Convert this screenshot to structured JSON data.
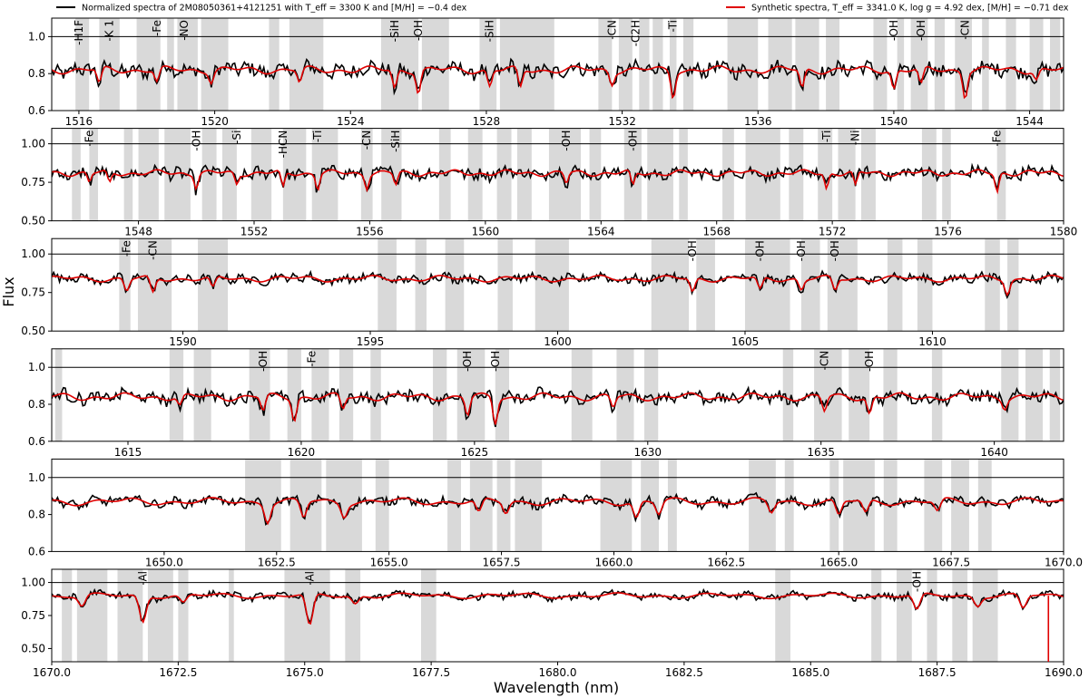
{
  "chart_data": {
    "type": "line",
    "xlabel": "Wavelength (nm)",
    "ylabel": "Flux",
    "legend": {
      "placement": "top",
      "entries": [
        {
          "label": "Normalized spectra of 2M08050361+4121251 with T_eff = 3300 K and [M/H] = −0.4 dex",
          "color": "#000000"
        },
        {
          "label": "Synthetic spectra, T_eff = 3341.0 K, log g = 4.92 dex, [M/H] = −0.71 dex",
          "color": "#e00000"
        }
      ]
    },
    "reference_line": 1.0,
    "highlight_color": "#d9d9d9",
    "panels": [
      {
        "xlim": [
          1515.2,
          1545.0
        ],
        "ylim": [
          0.6,
          1.1
        ],
        "xticks": [
          1516,
          1520,
          1524,
          1528,
          1532,
          1536,
          1540,
          1544
        ],
        "yticks": [
          0.6,
          0.8,
          1.0
        ],
        "ytick_decimals": 1,
        "xtick_decimals": 0,
        "baseline": 0.82,
        "noise": 0.035,
        "highlight_bands": [
          [
            1515.9,
            1516.3
          ],
          [
            1516.6,
            1517.2
          ],
          [
            1517.7,
            1518.4
          ],
          [
            1518.6,
            1518.8
          ],
          [
            1518.9,
            1519.5
          ],
          [
            1519.6,
            1520.4
          ],
          [
            1521.6,
            1521.9
          ],
          [
            1522.2,
            1523.2
          ],
          [
            1524.9,
            1526.0
          ],
          [
            1526.1,
            1526.9
          ],
          [
            1527.8,
            1528.3
          ],
          [
            1528.4,
            1530.0
          ],
          [
            1531.3,
            1531.7
          ],
          [
            1531.9,
            1532.3
          ],
          [
            1532.5,
            1532.8
          ],
          [
            1532.9,
            1533.2
          ],
          [
            1533.4,
            1533.6
          ],
          [
            1533.8,
            1534.1
          ],
          [
            1535.1,
            1536.0
          ],
          [
            1536.3,
            1537.0
          ],
          [
            1537.1,
            1537.8
          ],
          [
            1538.0,
            1538.4
          ],
          [
            1539.4,
            1539.8
          ],
          [
            1540.1,
            1540.3
          ],
          [
            1540.5,
            1541.0
          ],
          [
            1541.2,
            1541.5
          ],
          [
            1541.8,
            1542.3
          ],
          [
            1542.6,
            1542.8
          ],
          [
            1543.3,
            1543.6
          ],
          [
            1544.0,
            1544.4
          ],
          [
            1544.6,
            1544.9
          ]
        ],
        "features": [
          {
            "label": "-H1F",
            "x": 1516.0
          },
          {
            "label": "-K 1",
            "x": 1516.9
          },
          {
            "label": "-Fe",
            "x": 1518.3
          },
          {
            "label": "-NO",
            "x": 1519.1
          },
          {
            "label": "-SiH",
            "x": 1525.3
          },
          {
            "label": "-OH",
            "x": 1526.0
          },
          {
            "label": "-SiH",
            "x": 1528.1
          },
          {
            "label": "-CN",
            "x": 1531.7
          },
          {
            "label": "-C2H",
            "x": 1532.4
          },
          {
            "label": "-Ti",
            "x": 1533.5
          },
          {
            "label": "-OH",
            "x": 1540.0
          },
          {
            "label": "-OH",
            "x": 1540.8
          },
          {
            "label": "-CN",
            "x": 1542.1
          }
        ],
        "absorption_lines": [
          [
            1516.6,
            0.08
          ],
          [
            1518.3,
            0.07
          ],
          [
            1519.9,
            0.06
          ],
          [
            1522.5,
            0.07
          ],
          [
            1525.3,
            0.1
          ],
          [
            1526.0,
            0.12
          ],
          [
            1528.1,
            0.09
          ],
          [
            1529.0,
            0.1
          ],
          [
            1531.7,
            0.07
          ],
          [
            1533.5,
            0.14
          ],
          [
            1537.3,
            0.1
          ],
          [
            1540.0,
            0.1
          ],
          [
            1540.8,
            0.09
          ],
          [
            1542.1,
            0.14
          ],
          [
            1544.2,
            0.05
          ]
        ]
      },
      {
        "xlim": [
          1545.0,
          1580.0
        ],
        "ylim": [
          0.5,
          1.1
        ],
        "xticks": [
          1548,
          1552,
          1556,
          1560,
          1564,
          1568,
          1572,
          1576,
          1580
        ],
        "yticks": [
          0.5,
          0.75,
          1.0
        ],
        "ytick_decimals": 2,
        "xtick_decimals": 0,
        "baseline": 0.81,
        "noise": 0.035,
        "highlight_bands": [
          [
            1545.7,
            1546.0
          ],
          [
            1546.3,
            1546.6
          ],
          [
            1547.5,
            1547.8
          ],
          [
            1548.0,
            1548.7
          ],
          [
            1548.9,
            1549.8
          ],
          [
            1550.2,
            1550.7
          ],
          [
            1550.9,
            1551.4
          ],
          [
            1551.9,
            1552.6
          ],
          [
            1553.0,
            1553.8
          ],
          [
            1554.0,
            1554.9
          ],
          [
            1555.7,
            1556.1
          ],
          [
            1556.4,
            1557.1
          ],
          [
            1558.4,
            1558.8
          ],
          [
            1559.4,
            1559.9
          ],
          [
            1560.4,
            1560.9
          ],
          [
            1561.1,
            1561.6
          ],
          [
            1562.2,
            1563.3
          ],
          [
            1563.6,
            1564.0
          ],
          [
            1564.8,
            1565.4
          ],
          [
            1565.6,
            1566.5
          ],
          [
            1566.7,
            1567.0
          ],
          [
            1568.2,
            1568.6
          ],
          [
            1569.0,
            1570.2
          ],
          [
            1570.5,
            1571.0
          ],
          [
            1571.5,
            1572.0
          ],
          [
            1572.2,
            1572.8
          ],
          [
            1573.0,
            1573.5
          ],
          [
            1575.1,
            1575.6
          ],
          [
            1575.8,
            1576.1
          ],
          [
            1577.7,
            1578.0
          ]
        ],
        "features": [
          {
            "label": "-Fe",
            "x": 1546.3
          },
          {
            "label": "-OH",
            "x": 1550.0
          },
          {
            "label": "-Si",
            "x": 1551.4
          },
          {
            "label": "-HCN",
            "x": 1553.0
          },
          {
            "label": "-Ti",
            "x": 1554.2
          },
          {
            "label": "-CN",
            "x": 1555.9
          },
          {
            "label": "-SiH",
            "x": 1556.9
          },
          {
            "label": "-OH",
            "x": 1562.8
          },
          {
            "label": "-OH",
            "x": 1565.1
          },
          {
            "label": "-Ti",
            "x": 1571.8
          },
          {
            "label": "-Ni",
            "x": 1572.8
          },
          {
            "label": "-Fe",
            "x": 1577.7
          }
        ],
        "absorption_lines": [
          [
            1546.3,
            0.06
          ],
          [
            1547.0,
            0.07
          ],
          [
            1550.0,
            0.09
          ],
          [
            1551.4,
            0.07
          ],
          [
            1553.0,
            0.1
          ],
          [
            1554.2,
            0.1
          ],
          [
            1555.9,
            0.09
          ],
          [
            1556.9,
            0.08
          ],
          [
            1562.8,
            0.07
          ],
          [
            1565.1,
            0.09
          ],
          [
            1571.8,
            0.1
          ],
          [
            1572.8,
            0.09
          ],
          [
            1577.7,
            0.12
          ]
        ]
      },
      {
        "xlim": [
          1586.5,
          1613.5
        ],
        "ylim": [
          0.5,
          1.1
        ],
        "xticks": [
          1590,
          1595,
          1600,
          1605,
          1610
        ],
        "yticks": [
          0.5,
          0.75,
          1.0
        ],
        "ytick_decimals": 2,
        "xtick_decimals": 0,
        "baseline": 0.84,
        "noise": 0.025,
        "highlight_bands": [
          [
            1588.3,
            1588.6
          ],
          [
            1588.8,
            1589.7
          ],
          [
            1590.4,
            1591.2
          ],
          [
            1595.2,
            1595.7
          ],
          [
            1596.2,
            1596.5
          ],
          [
            1597.0,
            1597.5
          ],
          [
            1598.4,
            1598.8
          ],
          [
            1599.4,
            1600.3
          ],
          [
            1602.5,
            1603.5
          ],
          [
            1603.7,
            1604.2
          ],
          [
            1605.0,
            1606.2
          ],
          [
            1606.5,
            1607.0
          ],
          [
            1607.2,
            1608.0
          ],
          [
            1608.8,
            1609.2
          ],
          [
            1609.6,
            1610.0
          ],
          [
            1611.4,
            1611.8
          ],
          [
            1612.0,
            1612.3
          ]
        ],
        "features": [
          {
            "label": "-Fe",
            "x": 1588.5
          },
          {
            "label": "-CN",
            "x": 1589.2
          },
          {
            "label": "-OH",
            "x": 1603.6
          },
          {
            "label": "-OH",
            "x": 1605.4
          },
          {
            "label": "-OH",
            "x": 1606.5
          },
          {
            "label": "-OH",
            "x": 1607.4
          }
        ],
        "absorption_lines": [
          [
            1588.5,
            0.08
          ],
          [
            1589.2,
            0.1
          ],
          [
            1590.8,
            0.07
          ],
          [
            1603.6,
            0.09
          ],
          [
            1605.4,
            0.08
          ],
          [
            1606.5,
            0.07
          ],
          [
            1607.4,
            0.08
          ],
          [
            1612.0,
            0.09
          ]
        ]
      },
      {
        "xlim": [
          1612.8,
          1642.0
        ],
        "ylim": [
          0.6,
          1.1
        ],
        "xticks": [
          1615,
          1620,
          1625,
          1630,
          1635,
          1640
        ],
        "yticks": [
          0.6,
          0.8,
          1.0
        ],
        "ytick_decimals": 1,
        "xtick_decimals": 0,
        "baseline": 0.84,
        "noise": 0.03,
        "highlight_bands": [
          [
            1612.9,
            1613.1
          ],
          [
            1616.2,
            1616.6
          ],
          [
            1616.9,
            1617.4
          ],
          [
            1618.5,
            1619.1
          ],
          [
            1619.6,
            1620.0
          ],
          [
            1620.3,
            1620.8
          ],
          [
            1621.1,
            1621.5
          ],
          [
            1622.0,
            1622.3
          ],
          [
            1623.8,
            1624.2
          ],
          [
            1624.5,
            1625.3
          ],
          [
            1625.6,
            1626.0
          ],
          [
            1627.8,
            1628.4
          ],
          [
            1629.1,
            1629.6
          ],
          [
            1629.9,
            1630.3
          ],
          [
            1633.9,
            1634.2
          ],
          [
            1634.8,
            1635.6
          ],
          [
            1635.8,
            1636.4
          ],
          [
            1636.8,
            1637.2
          ],
          [
            1638.2,
            1638.5
          ],
          [
            1640.2,
            1640.7
          ],
          [
            1640.9,
            1641.4
          ],
          [
            1641.6,
            1641.9
          ]
        ],
        "features": [
          {
            "label": "-OH",
            "x": 1618.9
          },
          {
            "label": "-Fe",
            "x": 1620.3
          },
          {
            "label": "-OH",
            "x": 1624.8
          },
          {
            "label": "-OH",
            "x": 1625.6
          },
          {
            "label": "-CN",
            "x": 1635.1
          },
          {
            "label": "-OH",
            "x": 1636.4
          }
        ],
        "absorption_lines": [
          [
            1616.5,
            0.05
          ],
          [
            1618.9,
            0.08
          ],
          [
            1619.8,
            0.12
          ],
          [
            1621.2,
            0.07
          ],
          [
            1624.8,
            0.1
          ],
          [
            1625.6,
            0.14
          ],
          [
            1629.0,
            0.06
          ],
          [
            1635.1,
            0.08
          ],
          [
            1636.4,
            0.09
          ],
          [
            1640.3,
            0.05
          ]
        ]
      },
      {
        "xlim": [
          1647.5,
          1670.0
        ],
        "ylim": [
          0.6,
          1.1
        ],
        "xticks": [
          1650.0,
          1652.5,
          1655.0,
          1657.5,
          1660.0,
          1662.5,
          1665.0,
          1667.5,
          1670.0
        ],
        "yticks": [
          0.6,
          0.8,
          1.0
        ],
        "ytick_decimals": 1,
        "xtick_decimals": 1,
        "baseline": 0.87,
        "noise": 0.02,
        "highlight_bands": [
          [
            1651.8,
            1652.6
          ],
          [
            1652.8,
            1653.5
          ],
          [
            1653.6,
            1654.4
          ],
          [
            1654.7,
            1655.0
          ],
          [
            1656.3,
            1656.6
          ],
          [
            1656.8,
            1657.3
          ],
          [
            1657.4,
            1657.7
          ],
          [
            1657.8,
            1658.4
          ],
          [
            1659.7,
            1660.4
          ],
          [
            1660.6,
            1661.0
          ],
          [
            1661.2,
            1661.4
          ],
          [
            1663.0,
            1663.6
          ],
          [
            1663.8,
            1664.0
          ],
          [
            1664.8,
            1665.0
          ],
          [
            1665.1,
            1665.8
          ],
          [
            1666.0,
            1666.3
          ],
          [
            1666.9,
            1667.3
          ],
          [
            1667.5,
            1667.9
          ],
          [
            1668.1,
            1668.4
          ]
        ],
        "features": [],
        "absorption_lines": [
          [
            1652.3,
            0.1
          ],
          [
            1653.1,
            0.09
          ],
          [
            1654.0,
            0.07
          ],
          [
            1657.0,
            0.07
          ],
          [
            1657.6,
            0.06
          ],
          [
            1660.5,
            0.09
          ],
          [
            1661.0,
            0.07
          ],
          [
            1663.5,
            0.06
          ],
          [
            1665.0,
            0.08
          ],
          [
            1665.6,
            0.07
          ],
          [
            1667.2,
            0.06
          ]
        ]
      },
      {
        "xlim": [
          1670.0,
          1690.0
        ],
        "ylim": [
          0.4,
          1.1
        ],
        "xticks": [
          1670.0,
          1672.5,
          1675.0,
          1677.5,
          1680.0,
          1682.5,
          1685.0,
          1687.5,
          1690.0
        ],
        "yticks": [
          0.5,
          0.75,
          1.0
        ],
        "ytick_decimals": 2,
        "xtick_decimals": 1,
        "baseline": 0.9,
        "noise": 0.022,
        "highlight_bands": [
          [
            1670.2,
            1670.4
          ],
          [
            1670.5,
            1671.1
          ],
          [
            1671.3,
            1671.8
          ],
          [
            1671.9,
            1672.4
          ],
          [
            1672.5,
            1672.7
          ],
          [
            1673.5,
            1673.6
          ],
          [
            1674.6,
            1675.5
          ],
          [
            1675.8,
            1676.1
          ],
          [
            1677.3,
            1677.6
          ],
          [
            1684.3,
            1684.6
          ],
          [
            1686.2,
            1686.4
          ],
          [
            1686.7,
            1687.0
          ],
          [
            1687.3,
            1687.5
          ],
          [
            1687.8,
            1688.1
          ],
          [
            1688.2,
            1688.7
          ]
        ],
        "features": [
          {
            "label": "-Al",
            "x": 1671.8
          },
          {
            "label": "-Al",
            "x": 1675.1
          },
          {
            "label": "-OH",
            "x": 1687.1
          }
        ],
        "absorption_lines": [
          [
            1670.6,
            0.08
          ],
          [
            1671.8,
            0.2
          ],
          [
            1672.6,
            0.06
          ],
          [
            1675.1,
            0.24
          ],
          [
            1676.0,
            0.06
          ],
          [
            1687.1,
            0.12
          ],
          [
            1688.3,
            0.07
          ],
          [
            1689.2,
            0.1
          ]
        ]
      }
    ]
  }
}
